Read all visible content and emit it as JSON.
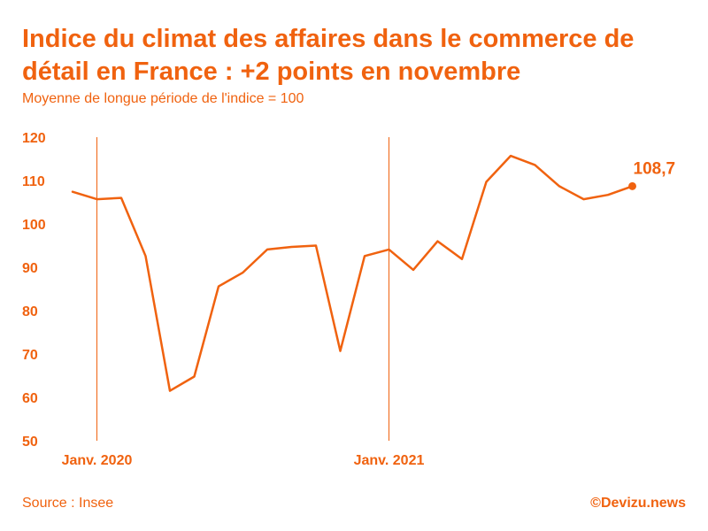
{
  "title": "Indice du climat des affaires dans le commerce de détail en France : +2 points en novembre",
  "subtitle": "Moyenne de longue période de l'indice = 100",
  "source": "Source : Insee",
  "brand": "©Devizu.news",
  "colors": {
    "accent": "#f0620f",
    "line": "#f0620f"
  },
  "chart_data": {
    "type": "line",
    "title": "Indice du climat des affaires dans le commerce de détail en France : +2 points en novembre",
    "xlabel": "",
    "ylabel": "",
    "ylim": [
      50,
      120
    ],
    "yticks": [
      120,
      110,
      100,
      90,
      80,
      70,
      60,
      50
    ],
    "x": [
      "2019-12",
      "2020-01",
      "2020-02",
      "2020-03",
      "2020-04",
      "2020-05",
      "2020-06",
      "2020-07",
      "2020-08",
      "2020-09",
      "2020-10",
      "2020-11",
      "2020-12",
      "2021-01",
      "2021-02",
      "2021-03",
      "2021-04",
      "2021-05",
      "2021-06",
      "2021-07",
      "2021-08",
      "2021-09",
      "2021-10",
      "2021-11"
    ],
    "series": [
      {
        "values": [
          107.4,
          105.7,
          106.0,
          92.6,
          61.5,
          64.8,
          85.6,
          88.8,
          94.1,
          94.7,
          95.0,
          70.7,
          92.6,
          94.1,
          89.4,
          96.0,
          91.9,
          109.7,
          115.7,
          113.6,
          108.7,
          105.7,
          106.7,
          108.7
        ]
      }
    ],
    "x_tick_labels": [
      {
        "x": "2020-01",
        "label": "Janv. 2020"
      },
      {
        "x": "2021-01",
        "label": "Janv. 2021"
      }
    ],
    "vertical_markers": [
      "2020-01",
      "2021-01"
    ],
    "annotation": {
      "x": "2021-11",
      "label": "108,7"
    },
    "grid": false,
    "legend": "none"
  }
}
